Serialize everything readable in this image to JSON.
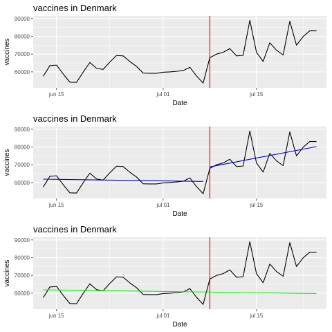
{
  "chart_data": [
    {
      "type": "line",
      "title": "vaccines in Denmark",
      "xlabel": "Date",
      "ylabel": "vaccines",
      "x_tick_labels": [
        "jun 15",
        "jul 01",
        "jul 15"
      ],
      "y_tick_labels": [
        "60000",
        "70000",
        "80000",
        "90000"
      ],
      "ylim": [
        51000,
        91500
      ],
      "grid": true,
      "series": [
        {
          "color": "#000000",
          "x": [
            "2021-06-13",
            "2021-06-14",
            "2021-06-15",
            "2021-06-16",
            "2021-06-17",
            "2021-06-18",
            "2021-06-19",
            "2021-06-20",
            "2021-06-21",
            "2021-06-22",
            "2021-06-23",
            "2021-06-24",
            "2021-06-25",
            "2021-06-26",
            "2021-06-27",
            "2021-06-28",
            "2021-06-29",
            "2021-06-30",
            "2021-07-01",
            "2021-07-02",
            "2021-07-03",
            "2021-07-04",
            "2021-07-05",
            "2021-07-06",
            "2021-07-07",
            "2021-07-08",
            "2021-07-09",
            "2021-07-10",
            "2021-07-11",
            "2021-07-12",
            "2021-07-13",
            "2021-07-14",
            "2021-07-15",
            "2021-07-16",
            "2021-07-17",
            "2021-07-18",
            "2021-07-19",
            "2021-07-20",
            "2021-07-21",
            "2021-07-22",
            "2021-07-23",
            "2021-07-24"
          ],
          "values": [
            57500,
            63500,
            63800,
            58800,
            54200,
            54100,
            59900,
            65300,
            62000,
            61400,
            65500,
            69200,
            69000,
            65800,
            63100,
            59300,
            59200,
            59200,
            59800,
            60000,
            60300,
            60700,
            62600,
            57700,
            53700,
            68000,
            70000,
            71000,
            73100,
            69000,
            69300,
            89000,
            71000,
            65900,
            76400,
            72200,
            69500,
            88500,
            75000,
            79900,
            83100,
            83100
          ]
        }
      ],
      "vline": {
        "x": "2021-07-08",
        "color": "#ff0000"
      }
    },
    {
      "type": "line",
      "title": "vaccines in Denmark",
      "xlabel": "Date",
      "ylabel": "vaccines",
      "x_tick_labels": [
        "jun 15",
        "jul 01",
        "jul 15"
      ],
      "y_tick_labels": [
        "60000",
        "70000",
        "80000",
        "90000"
      ],
      "ylim": [
        51000,
        91500
      ],
      "grid": true,
      "series": [
        {
          "color": "#000000",
          "x": [
            "2021-06-13",
            "2021-06-14",
            "2021-06-15",
            "2021-06-16",
            "2021-06-17",
            "2021-06-18",
            "2021-06-19",
            "2021-06-20",
            "2021-06-21",
            "2021-06-22",
            "2021-06-23",
            "2021-06-24",
            "2021-06-25",
            "2021-06-26",
            "2021-06-27",
            "2021-06-28",
            "2021-06-29",
            "2021-06-30",
            "2021-07-01",
            "2021-07-02",
            "2021-07-03",
            "2021-07-04",
            "2021-07-05",
            "2021-07-06",
            "2021-07-07",
            "2021-07-08",
            "2021-07-09",
            "2021-07-10",
            "2021-07-11",
            "2021-07-12",
            "2021-07-13",
            "2021-07-14",
            "2021-07-15",
            "2021-07-16",
            "2021-07-17",
            "2021-07-18",
            "2021-07-19",
            "2021-07-20",
            "2021-07-21",
            "2021-07-22",
            "2021-07-23",
            "2021-07-24"
          ],
          "values": [
            57500,
            63500,
            63800,
            58800,
            54200,
            54100,
            59900,
            65300,
            62000,
            61400,
            65500,
            69200,
            69000,
            65800,
            63100,
            59300,
            59200,
            59200,
            59800,
            60000,
            60300,
            60700,
            62600,
            57700,
            53700,
            68000,
            70000,
            71000,
            73100,
            69000,
            69300,
            89000,
            71000,
            65900,
            76400,
            72200,
            69500,
            88500,
            75000,
            79900,
            83100,
            83100
          ]
        },
        {
          "color": "#0000cd",
          "x": [
            "2021-06-13",
            "2021-07-07"
          ],
          "values": [
            61900,
            60600
          ]
        },
        {
          "color": "#0000cd",
          "x": [
            "2021-07-08",
            "2021-07-24"
          ],
          "values": [
            68800,
            80200
          ]
        }
      ],
      "vline": {
        "x": "2021-07-08",
        "color": "#ff0000"
      }
    },
    {
      "type": "line",
      "title": "vaccines in Denmark",
      "xlabel": "Date",
      "ylabel": "vaccines",
      "x_tick_labels": [
        "jun 15",
        "jul 01",
        "jul 15"
      ],
      "y_tick_labels": [
        "60000",
        "70000",
        "80000",
        "90000"
      ],
      "ylim": [
        51000,
        91500
      ],
      "grid": true,
      "series": [
        {
          "color": "#000000",
          "x": [
            "2021-06-13",
            "2021-06-14",
            "2021-06-15",
            "2021-06-16",
            "2021-06-17",
            "2021-06-18",
            "2021-06-19",
            "2021-06-20",
            "2021-06-21",
            "2021-06-22",
            "2021-06-23",
            "2021-06-24",
            "2021-06-25",
            "2021-06-26",
            "2021-06-27",
            "2021-06-28",
            "2021-06-29",
            "2021-06-30",
            "2021-07-01",
            "2021-07-02",
            "2021-07-03",
            "2021-07-04",
            "2021-07-05",
            "2021-07-06",
            "2021-07-07",
            "2021-07-08",
            "2021-07-09",
            "2021-07-10",
            "2021-07-11",
            "2021-07-12",
            "2021-07-13",
            "2021-07-14",
            "2021-07-15",
            "2021-07-16",
            "2021-07-17",
            "2021-07-18",
            "2021-07-19",
            "2021-07-20",
            "2021-07-21",
            "2021-07-22",
            "2021-07-23",
            "2021-07-24"
          ],
          "values": [
            57500,
            63500,
            63800,
            58800,
            54200,
            54100,
            59900,
            65300,
            62000,
            61400,
            65500,
            69200,
            69000,
            65800,
            63100,
            59300,
            59200,
            59200,
            59800,
            60000,
            60300,
            60700,
            62600,
            57700,
            53700,
            68000,
            70000,
            71000,
            73100,
            69000,
            69300,
            89000,
            71000,
            65900,
            76400,
            72200,
            69500,
            88500,
            75000,
            79900,
            83100,
            83100
          ]
        },
        {
          "color": "#00ee00",
          "x": [
            "2021-06-13",
            "2021-07-24"
          ],
          "values": [
            61900,
            59800
          ]
        }
      ],
      "vline": {
        "x": "2021-07-08",
        "color": "#ff0000"
      }
    }
  ]
}
